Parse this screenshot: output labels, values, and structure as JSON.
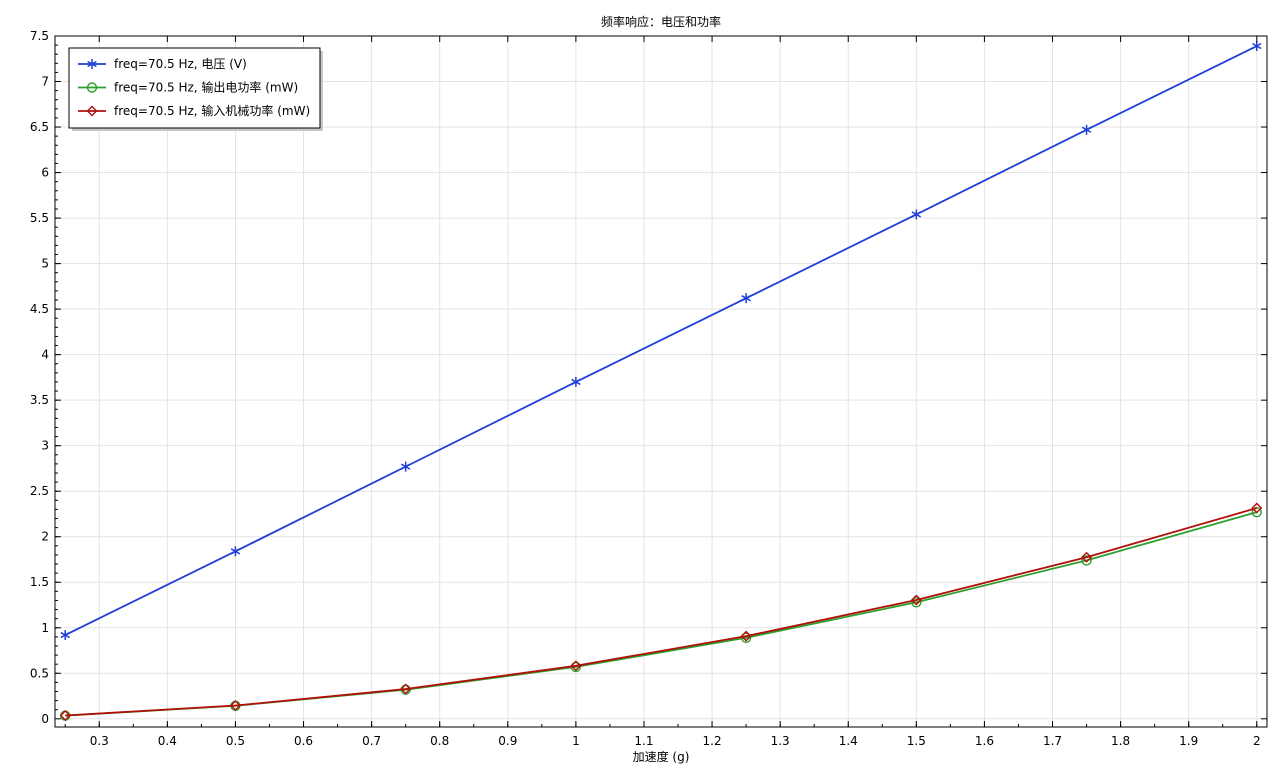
{
  "chart_data": {
    "type": "line",
    "title": "频率响应：电压和功率",
    "xlabel": "加速度 (g)",
    "ylabel": "",
    "xlim": [
      0.235,
      2.015
    ],
    "ylim": [
      -0.09,
      7.5
    ],
    "x_ticks": [
      "0.3",
      "0.4",
      "0.5",
      "0.6",
      "0.7",
      "0.8",
      "0.9",
      "1",
      "1.1",
      "1.2",
      "1.3",
      "1.4",
      "1.5",
      "1.6",
      "1.7",
      "1.8",
      "1.9",
      "2"
    ],
    "y_ticks": [
      "0",
      "0.5",
      "1",
      "1.5",
      "2",
      "2.5",
      "3",
      "3.5",
      "4",
      "4.5",
      "5",
      "5.5",
      "6",
      "6.5",
      "7",
      "7.5"
    ],
    "grid": true,
    "legend_position": "top-left",
    "x": [
      0.25,
      0.5,
      0.75,
      1.0,
      1.25,
      1.5,
      1.75,
      2.0
    ],
    "series": [
      {
        "name": "freq=70.5 Hz, 电压 (V)",
        "color": "#1f3fd6",
        "marker": "asterisk",
        "values": [
          0.92,
          1.84,
          2.77,
          3.7,
          4.62,
          5.54,
          6.47,
          7.39
        ]
      },
      {
        "name": "freq=70.5 Hz, 输出电功率 (mW)",
        "color": "#2ca02c",
        "marker": "circle",
        "values": [
          0.035,
          0.143,
          0.32,
          0.57,
          0.89,
          1.28,
          1.74,
          2.27
        ]
      },
      {
        "name": "freq=70.5 Hz, 输入机械功率 (mW)",
        "color": "#b00f0a",
        "marker": "diamond",
        "values": [
          0.036,
          0.146,
          0.327,
          0.582,
          0.908,
          1.305,
          1.775,
          2.315
        ]
      }
    ]
  }
}
